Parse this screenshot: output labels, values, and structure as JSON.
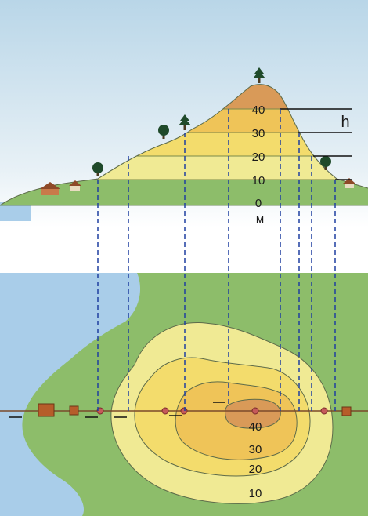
{
  "profile": {
    "height_labels": [
      "40",
      "30",
      "20",
      "10",
      "0"
    ],
    "unit_label": "м",
    "h_label": "h"
  },
  "map": {
    "contour_labels": [
      "40",
      "30",
      "20",
      "10"
    ]
  },
  "colors": {
    "sky": "#cfe3ef",
    "water": "#a9cde9",
    "lowland": "#8dbd6a",
    "band_10_20": "#f0ea94",
    "band_20_30": "#f3dc6c",
    "band_30_40": "#efc458",
    "summit": "#d99a58",
    "guide_line": "#1f3fa0"
  }
}
